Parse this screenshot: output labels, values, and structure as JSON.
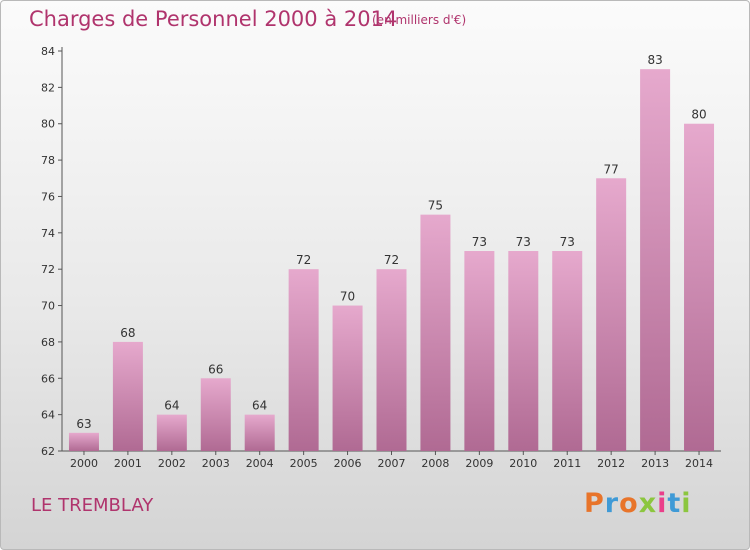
{
  "header": {
    "title": "Charges de Personnel 2000 à 2014",
    "subtitle": "(en milliers d'€)"
  },
  "footer": {
    "place_name": "LE TREMBLAY",
    "logo_text": "Proxiti",
    "logo_letter_colors": [
      "#e8742a",
      "#3f9ad6",
      "#e8742a",
      "#8cc63f",
      "#ea3f8a",
      "#3f9ad6",
      "#8cc63f"
    ]
  },
  "colors": {
    "accent": "#b0346d",
    "bar_top": "#e6a9cd",
    "bar_bottom": "#b06a93"
  },
  "chart_data": {
    "type": "bar",
    "categories": [
      "2000",
      "2001",
      "2002",
      "2003",
      "2004",
      "2005",
      "2006",
      "2007",
      "2008",
      "2009",
      "2010",
      "2011",
      "2012",
      "2013",
      "2014"
    ],
    "values": [
      63,
      68,
      64,
      66,
      64,
      72,
      70,
      72,
      75,
      73,
      73,
      73,
      77,
      83,
      80
    ],
    "ylim": [
      62,
      84
    ],
    "yticks": [
      62,
      64,
      66,
      68,
      70,
      72,
      74,
      76,
      78,
      80,
      82,
      84
    ],
    "grid": false,
    "data_labels": true
  }
}
